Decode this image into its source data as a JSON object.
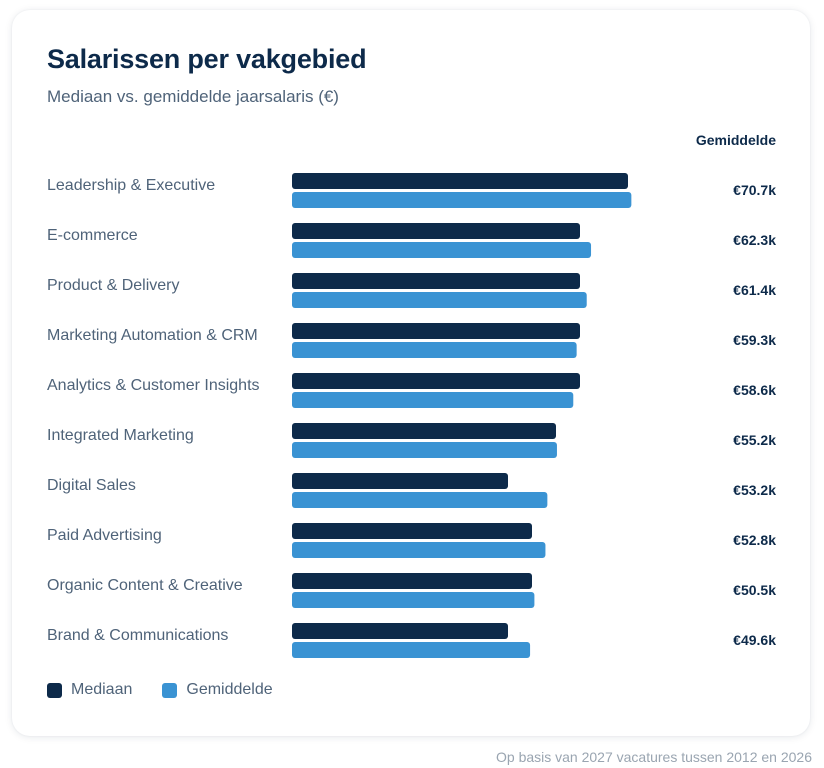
{
  "card": {
    "title": "Salarissen per vakgebied",
    "subtitle": "Mediaan vs. gemiddelde jaarsalaris (€)",
    "value_column_header": "Gemiddelde"
  },
  "legend": {
    "items": [
      {
        "label": "Mediaan",
        "color": "#0d2a4a"
      },
      {
        "label": "Gemiddelde",
        "color": "#3a93d3"
      }
    ]
  },
  "footnote": "Op basis van 2027 vacatures tussen 2012 en 2026",
  "chart_data": {
    "type": "bar",
    "orientation": "horizontal",
    "grid": false,
    "legend_position": "bottom-left",
    "title": "Salarissen per vakgebied",
    "subtitle": "Mediaan vs. gemiddelde jaarsalaris (€)",
    "categories": [
      "Leadership & Executive",
      "E-commerce",
      "Product & Delivery",
      "Marketing Automation & CRM",
      "Analytics & Customer Insights",
      "Integrated Marketing",
      "Digital Sales",
      "Paid Advertising",
      "Organic Content & Creative",
      "Brand & Communications"
    ],
    "series": [
      {
        "name": "Mediaan",
        "color": "#0d2a4a",
        "values": [
          70.0,
          60.0,
          60.0,
          60.0,
          60.0,
          55.0,
          45.0,
          50.0,
          50.0,
          45.0
        ]
      },
      {
        "name": "Gemiddelde",
        "color": "#3a93d3",
        "values": [
          70.7,
          62.3,
          61.4,
          59.3,
          58.6,
          55.2,
          53.2,
          52.8,
          50.5,
          49.6
        ]
      }
    ],
    "value_labels": [
      "€70.7k",
      "€62.3k",
      "€61.4k",
      "€59.3k",
      "€58.6k",
      "€55.2k",
      "€53.2k",
      "€52.8k",
      "€50.5k",
      "€49.6k"
    ],
    "xlim": [
      0,
      75
    ]
  }
}
